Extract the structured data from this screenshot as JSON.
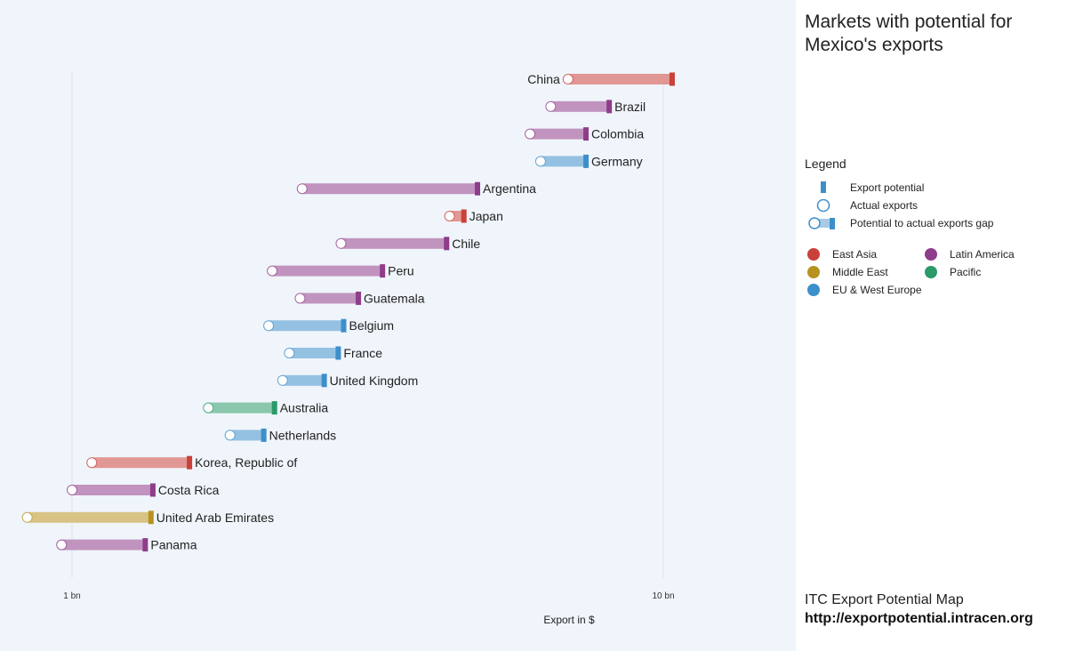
{
  "panel": {
    "title": "Markets with potential for Mexico's exports",
    "legend_title": "Legend",
    "legend_items": {
      "export_potential": "Export potential",
      "actual_exports": "Actual exports",
      "gap": "Potential to actual exports gap"
    },
    "regions": [
      {
        "name": "East Asia",
        "color": "#c9413a"
      },
      {
        "name": "Latin America",
        "color": "#8e3d8a"
      },
      {
        "name": "Middle East",
        "color": "#b8921f"
      },
      {
        "name": "Pacific",
        "color": "#2a9a68"
      },
      {
        "name": "EU & West Europe",
        "color": "#3d8fcb"
      }
    ],
    "footer_title": "ITC Export Potential Map",
    "footer_url": "http://exportpotential.intracen.org"
  },
  "chart_data": {
    "type": "dumbbell",
    "xlabel": "Export in $",
    "x_scale": "log",
    "xlim_bn": [
      0.86,
      14.5
    ],
    "x_ticks": [
      {
        "value": 1,
        "label": "1 bn"
      },
      {
        "value": 10,
        "label": "10 bn"
      }
    ],
    "series": [
      {
        "country": "China",
        "region": "East Asia",
        "actual": 6.9,
        "potential": 10.35,
        "label_side": "left"
      },
      {
        "country": "Brazil",
        "region": "Latin America",
        "actual": 6.45,
        "potential": 8.1,
        "label_side": "right"
      },
      {
        "country": "Colombia",
        "region": "Latin America",
        "actual": 5.95,
        "potential": 7.4,
        "label_side": "right"
      },
      {
        "country": "Germany",
        "region": "EU & West Europe",
        "actual": 6.2,
        "potential": 7.4,
        "label_side": "right"
      },
      {
        "country": "Argentina",
        "region": "Latin America",
        "actual": 2.45,
        "potential": 4.85,
        "label_side": "right"
      },
      {
        "country": "Japan",
        "region": "East Asia",
        "actual": 4.35,
        "potential": 4.6,
        "label_side": "right"
      },
      {
        "country": "Chile",
        "region": "Latin America",
        "actual": 2.85,
        "potential": 4.3,
        "label_side": "right"
      },
      {
        "country": "Peru",
        "region": "Latin America",
        "actual": 2.18,
        "potential": 3.35,
        "label_side": "right"
      },
      {
        "country": "Guatemala",
        "region": "Latin America",
        "actual": 2.43,
        "potential": 3.05,
        "label_side": "right"
      },
      {
        "country": "Belgium",
        "region": "EU & West Europe",
        "actual": 2.15,
        "potential": 2.88,
        "label_side": "right"
      },
      {
        "country": "France",
        "region": "EU & West Europe",
        "actual": 2.33,
        "potential": 2.82,
        "label_side": "right"
      },
      {
        "country": "United Kingdom",
        "region": "EU & West Europe",
        "actual": 2.27,
        "potential": 2.67,
        "label_side": "right"
      },
      {
        "country": "Australia",
        "region": "Pacific",
        "actual": 1.7,
        "potential": 2.2,
        "label_side": "right"
      },
      {
        "country": "Netherlands",
        "region": "EU & West Europe",
        "actual": 1.85,
        "potential": 2.11,
        "label_side": "right"
      },
      {
        "country": "Korea, Republic of",
        "region": "East Asia",
        "actual": 1.08,
        "potential": 1.58,
        "label_side": "right"
      },
      {
        "country": "Costa Rica",
        "region": "Latin America",
        "actual": 1.0,
        "potential": 1.37,
        "label_side": "right"
      },
      {
        "country": "United Arab Emirates",
        "region": "Middle East",
        "actual": 0.84,
        "potential": 1.36,
        "label_side": "right"
      },
      {
        "country": "Panama",
        "region": "Latin America",
        "actual": 0.96,
        "potential": 1.33,
        "label_side": "right"
      }
    ]
  }
}
